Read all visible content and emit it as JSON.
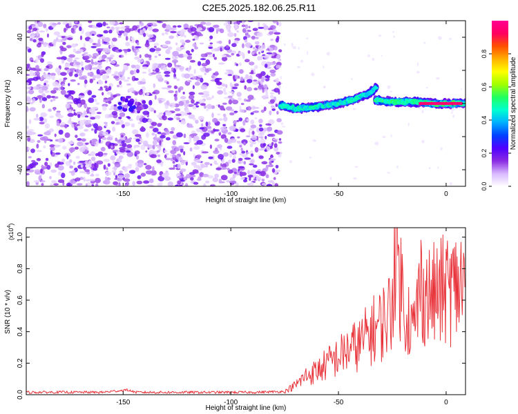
{
  "chart_data": [
    {
      "type": "heatmap",
      "title": "C2E5.2025.182.06.25.R11",
      "xlabel": "Height of straight line (km)",
      "ylabel": "Frequency (Hz)",
      "xlim": [
        -195,
        9
      ],
      "ylim": [
        -50,
        50
      ],
      "xticks": [
        -150,
        -100,
        -50,
        0
      ],
      "yticks": [
        -40,
        -20,
        0,
        20,
        40
      ],
      "grid": false,
      "colorbar": {
        "label": "Normalized spectral amplitude",
        "ticks": [
          0.0,
          0.2,
          0.4,
          0.6,
          0.8
        ],
        "range": [
          0,
          1
        ],
        "colors": [
          "#ffffff",
          "#d8b8ff",
          "#8a2be2",
          "#5000ff",
          "#0040ff",
          "#00b0ff",
          "#00ffd0",
          "#20ff60",
          "#a0ff00",
          "#ffff00",
          "#ffb000",
          "#ff5000",
          "#ff0060",
          "#ff0090"
        ]
      },
      "features": {
        "noise_region_x": [
          -195,
          -77
        ],
        "signal_start_x": -77,
        "branch_a": {
          "x": [
            -77,
            -70,
            -60,
            -50,
            -42,
            -36,
            -32
          ],
          "freq": [
            -1,
            -3,
            -2,
            0,
            3,
            6,
            10
          ],
          "amplitude": 0.45
        },
        "branch_b": {
          "x": [
            -33,
            -25,
            -15,
            -5,
            9
          ],
          "freq": [
            2,
            1,
            1,
            0,
            0
          ],
          "amplitude": 0.5
        },
        "peak": {
          "x": [
            -12,
            7
          ],
          "freq": 0,
          "amplitude": 0.95
        },
        "blob": {
          "x": -146,
          "freq": -1,
          "amplitude": 0.25
        }
      }
    },
    {
      "type": "line",
      "xlabel": "Height of straight line (km)",
      "ylabel": "SNR (10 * v/v)",
      "yscale_label": "(x10",
      "yscale_exp": "4",
      "xlim": [
        -195,
        9
      ],
      "ylim": [
        0,
        1.06
      ],
      "xticks": [
        -150,
        -100,
        -50,
        0
      ],
      "yticks": [
        0.0,
        0.2,
        0.4,
        0.6,
        0.8,
        1.0
      ],
      "grid": false,
      "series": [
        {
          "color": "#e8333a",
          "x": [
            -195,
            -180,
            -160,
            -148,
            -144,
            -130,
            -110,
            -90,
            -75,
            -70,
            -65,
            -60,
            -55,
            -50,
            -45,
            -40,
            -35,
            -30,
            -25,
            -24,
            -20,
            -15,
            -12,
            -8,
            -5,
            0,
            5,
            9
          ],
          "y": [
            0.015,
            0.016,
            0.015,
            0.03,
            0.015,
            0.015,
            0.015,
            0.015,
            0.02,
            0.06,
            0.12,
            0.15,
            0.2,
            0.24,
            0.29,
            0.32,
            0.4,
            0.45,
            0.55,
            1.05,
            0.6,
            0.4,
            0.7,
            0.62,
            0.63,
            0.67,
            0.68,
            0.73
          ]
        }
      ]
    }
  ]
}
